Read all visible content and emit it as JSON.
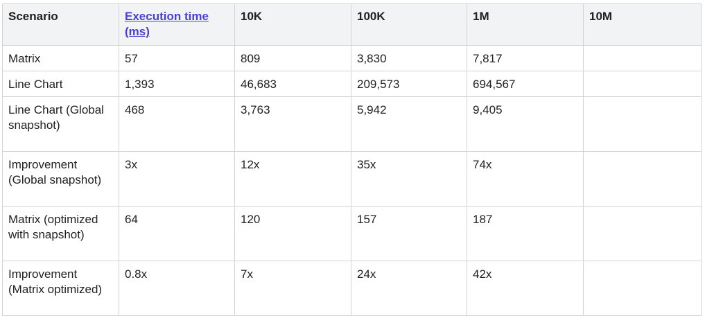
{
  "table": {
    "headers": [
      {
        "label": "Scenario",
        "link": false
      },
      {
        "label": "Execution time (ms)",
        "link": true
      },
      {
        "label": "10K",
        "link": false
      },
      {
        "label": "100K",
        "link": false
      },
      {
        "label": "1M",
        "link": false
      },
      {
        "label": "10M",
        "link": false
      }
    ],
    "rows": [
      {
        "cells": [
          "Matrix",
          "57",
          "809",
          "3,830",
          "7,817",
          ""
        ]
      },
      {
        "cells": [
          "Line Chart",
          "1,393",
          "46,683",
          "209,573",
          "694,567",
          ""
        ]
      },
      {
        "cells": [
          "Line Chart (Global snapshot)",
          "468",
          "3,763",
          "5,942",
          "9,405",
          ""
        ]
      },
      {
        "cells": [
          "Improvement (Global snapshot)",
          "3x",
          "12x",
          "35x",
          "74x",
          ""
        ]
      },
      {
        "cells": [
          "Matrix (optimized with snapshot)",
          "64",
          "120",
          "157",
          "187",
          ""
        ]
      },
      {
        "cells": [
          "Improvement (Matrix optimized)",
          "0.8x",
          "7x",
          "24x",
          "42x",
          ""
        ]
      }
    ]
  }
}
